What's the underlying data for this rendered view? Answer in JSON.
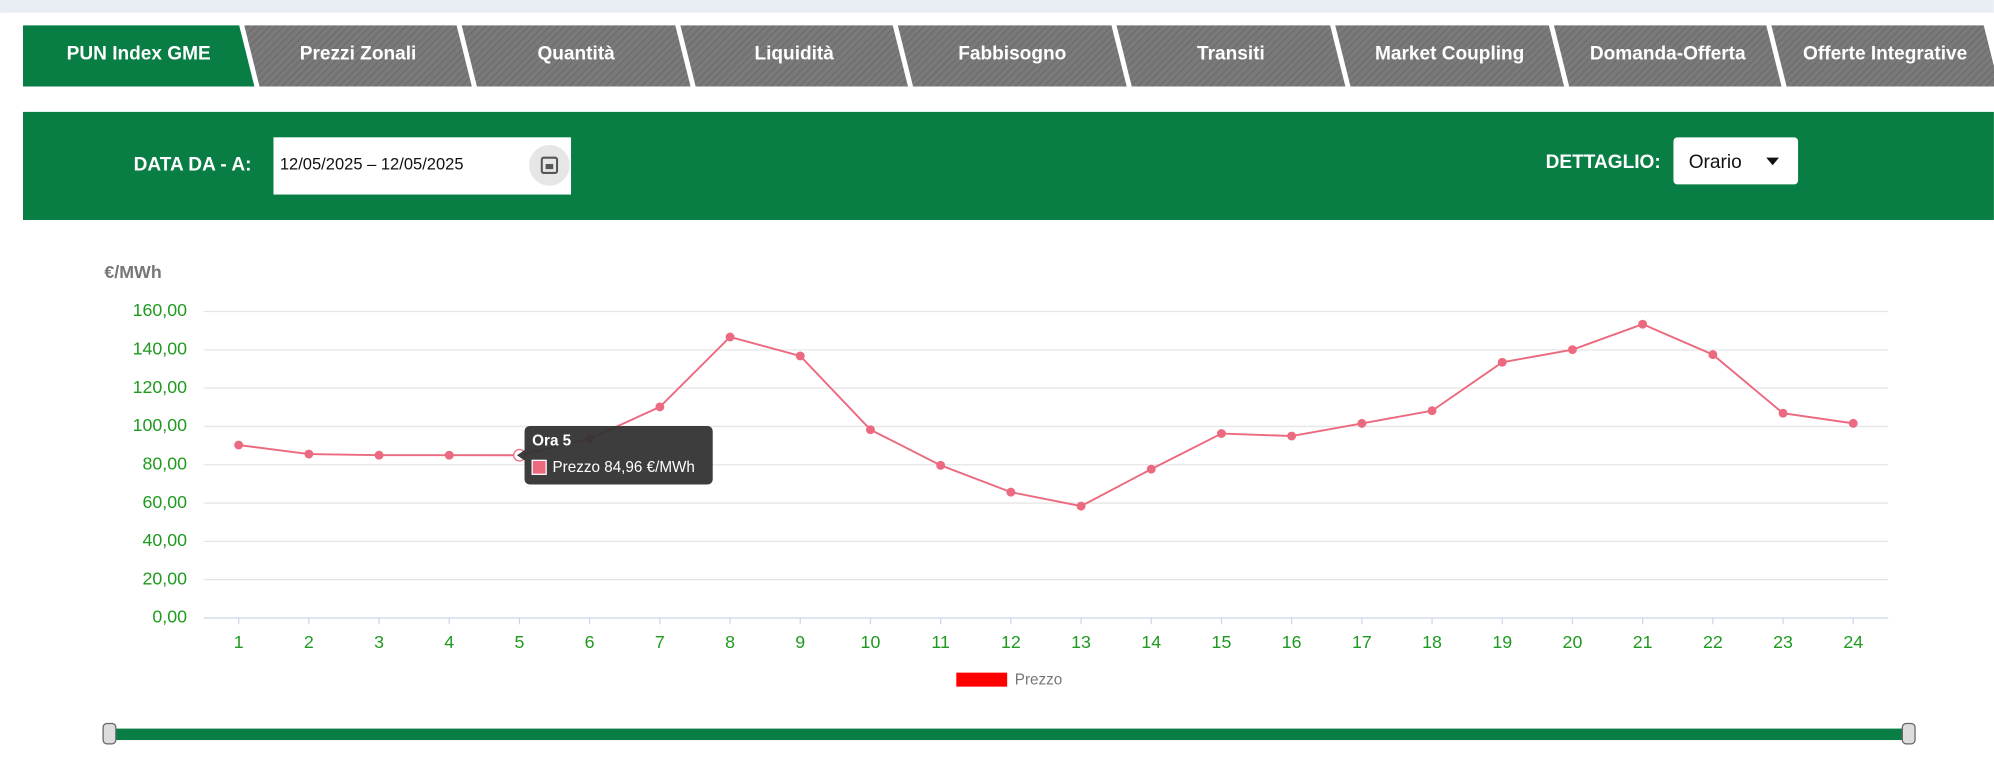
{
  "tabs": [
    "PUN Index GME",
    "Prezzi Zonali",
    "Quantità",
    "Liquidità",
    "Fabbisogno",
    "Transiti",
    "Market Coupling",
    "Domanda-Offerta",
    "Offerte Integrative"
  ],
  "active_tab": 0,
  "filter": {
    "date_label": "DATA DA - A:",
    "date_value": "12/05/2025 – 12/05/2025",
    "detail_label": "DETTAGLIO:",
    "detail_value": "Orario"
  },
  "chart_data": {
    "type": "line",
    "y_label": "€/MWh",
    "categories": [
      "1",
      "2",
      "3",
      "4",
      "5",
      "6",
      "7",
      "8",
      "9",
      "10",
      "11",
      "12",
      "13",
      "14",
      "15",
      "16",
      "17",
      "18",
      "19",
      "20",
      "21",
      "22",
      "23",
      "24"
    ],
    "series": [
      {
        "name": "Prezzo",
        "color": "#ec6a80",
        "legend_color": "#ff0000",
        "values": [
          90.3,
          85.6,
          85.0,
          85.0,
          84.96,
          93.5,
          110.2,
          146.7,
          136.8,
          98.3,
          79.7,
          65.7,
          58.4,
          77.7,
          96.3,
          95.0,
          101.6,
          108.2,
          133.5,
          140.1,
          153.4,
          137.5,
          106.9,
          101.6
        ]
      }
    ],
    "ylim": [
      0,
      160
    ],
    "yticks": [
      {
        "value": 0,
        "label": "0,00"
      },
      {
        "value": 20,
        "label": "20,00"
      },
      {
        "value": 40,
        "label": "40,00"
      },
      {
        "value": 60,
        "label": "60,00"
      },
      {
        "value": 80,
        "label": "80,00"
      },
      {
        "value": 100,
        "label": "100,00"
      },
      {
        "value": 120,
        "label": "120,00"
      },
      {
        "value": 140,
        "label": "140,00"
      },
      {
        "value": 160,
        "label": "160,00"
      }
    ],
    "grid": true,
    "tooltip": {
      "index": 4,
      "title": "Ora 5",
      "text": "Prezzo 84,96 €/MWh"
    }
  }
}
